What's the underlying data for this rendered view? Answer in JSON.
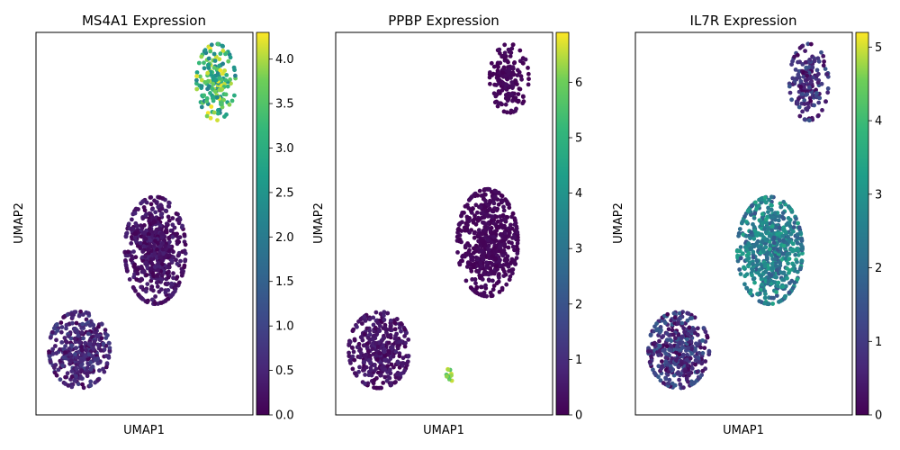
{
  "chart_data": [
    {
      "type": "scatter",
      "title": "MS4A1 Expression",
      "xlabel": "UMAP1",
      "ylabel": "UMAP2",
      "colormap": "viridis",
      "colorbar": {
        "vmin": 0.0,
        "vmax": 4.3,
        "ticks": [
          0.0,
          0.5,
          1.0,
          1.5,
          2.0,
          2.5,
          3.0,
          3.5,
          4.0
        ],
        "tick_labels": [
          "0.0",
          "0.5",
          "1.0",
          "1.5",
          "2.0",
          "2.5",
          "3.0",
          "3.5",
          "4.0"
        ]
      },
      "clusters": [
        {
          "x": 0.83,
          "y": 0.87,
          "rx": 0.09,
          "ry": 0.1,
          "n": 170,
          "lo": 2.0,
          "hi": 4.3
        },
        {
          "x": 0.55,
          "y": 0.43,
          "rx": 0.14,
          "ry": 0.14,
          "n": 600,
          "lo": 0.0,
          "hi": 0.5
        },
        {
          "x": 0.2,
          "y": 0.17,
          "rx": 0.14,
          "ry": 0.1,
          "n": 400,
          "lo": 0.0,
          "hi": 1.0
        }
      ]
    },
    {
      "type": "scatter",
      "title": "PPBP Expression",
      "xlabel": "UMAP1",
      "ylabel": "UMAP2",
      "colormap": "viridis",
      "colorbar": {
        "vmin": 0,
        "vmax": 6.9,
        "ticks": [
          0,
          1,
          2,
          3,
          4,
          5,
          6
        ],
        "tick_labels": [
          "0",
          "1",
          "2",
          "3",
          "4",
          "5",
          "6"
        ]
      },
      "clusters": [
        {
          "x": 0.8,
          "y": 0.88,
          "rx": 0.09,
          "ry": 0.09,
          "n": 170,
          "lo": 0.0,
          "hi": 0.3
        },
        {
          "x": 0.7,
          "y": 0.45,
          "rx": 0.14,
          "ry": 0.14,
          "n": 600,
          "lo": 0.0,
          "hi": 0.3
        },
        {
          "x": 0.2,
          "y": 0.17,
          "rx": 0.14,
          "ry": 0.1,
          "n": 400,
          "lo": 0.0,
          "hi": 0.8
        },
        {
          "x": 0.52,
          "y": 0.1,
          "rx": 0.02,
          "ry": 0.02,
          "n": 12,
          "lo": 5.5,
          "hi": 6.9
        }
      ]
    },
    {
      "type": "scatter",
      "title": "IL7R Expression",
      "xlabel": "UMAP1",
      "ylabel": "UMAP2",
      "colormap": "viridis",
      "colorbar": {
        "vmin": 0,
        "vmax": 5.2,
        "ticks": [
          0,
          1,
          2,
          3,
          4,
          5
        ],
        "tick_labels": [
          "0",
          "1",
          "2",
          "3",
          "4",
          "5"
        ]
      },
      "clusters": [
        {
          "x": 0.8,
          "y": 0.87,
          "rx": 0.09,
          "ry": 0.1,
          "n": 170,
          "lo": 0.0,
          "hi": 1.6
        },
        {
          "x": 0.62,
          "y": 0.43,
          "rx": 0.15,
          "ry": 0.14,
          "n": 600,
          "lo": 1.5,
          "hi": 3.5
        },
        {
          "x": 0.2,
          "y": 0.17,
          "rx": 0.14,
          "ry": 0.1,
          "n": 400,
          "lo": 0.0,
          "hi": 1.8
        }
      ]
    }
  ]
}
